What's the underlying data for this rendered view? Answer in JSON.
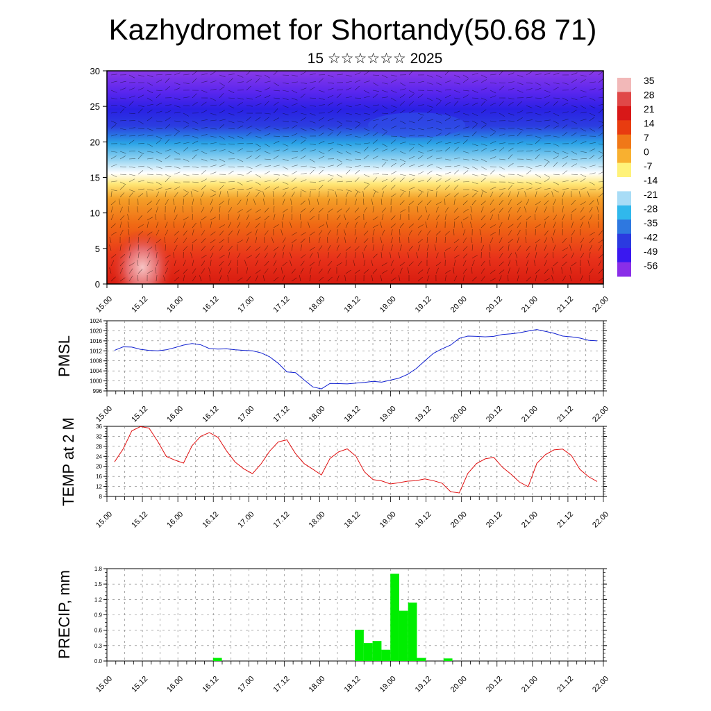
{
  "title": "Kazhydromet for Shortandy(50.68 71)",
  "subtitle": "15 ☆☆☆☆☆☆ 2025",
  "time_labels": [
    "15.00",
    "15.12",
    "16.00",
    "16.12",
    "17.00",
    "17.12",
    "18.00",
    "18.12",
    "19.00",
    "19.12",
    "20.00",
    "20.12",
    "21.00",
    "21.12",
    "22.00"
  ],
  "colorbar": {
    "labels": [
      "35",
      "28",
      "21",
      "14",
      "7",
      "0",
      "-7",
      "-14",
      "-21",
      "-28",
      "-35",
      "-42",
      "-49",
      "-56"
    ],
    "colors": [
      "#f2b8b8",
      "#e04848",
      "#d81818",
      "#e83c10",
      "#f07818",
      "#f8b030",
      "#fff27a",
      "#ffffff",
      "#a8dcf6",
      "#30b8ec",
      "#2e78e0",
      "#2b3ae0",
      "#3a18f0",
      "#8a2ee8"
    ]
  },
  "chart_data": [
    {
      "type": "heatmap",
      "description_text": "",
      "x_labels": [
        "15.00",
        "15.12",
        "16.00",
        "16.12",
        "17.00",
        "17.12",
        "18.00",
        "18.12",
        "19.00",
        "19.12",
        "20.00",
        "20.12",
        "21.00",
        "21.12",
        "22.00"
      ],
      "ylim": [
        0,
        30
      ],
      "y_ticks": [
        0,
        5,
        10,
        15,
        20,
        25,
        30
      ],
      "value_range": [
        -56,
        35
      ]
    },
    {
      "type": "line",
      "ylabel": "PMSL",
      "ylim": [
        996,
        1024
      ],
      "y_ticks": [
        996,
        1000,
        1004,
        1008,
        1012,
        1016,
        1020,
        1024
      ],
      "color": "#1020d0",
      "x": [
        "15.00",
        "15.03",
        "15.06",
        "15.09",
        "15.12",
        "15.15",
        "15.18",
        "15.21",
        "16.00",
        "16.03",
        "16.06",
        "16.09",
        "16.12",
        "16.15",
        "16.18",
        "16.21",
        "17.00",
        "17.03",
        "17.06",
        "17.09",
        "17.12",
        "17.15",
        "17.18",
        "17.21",
        "18.00",
        "18.03",
        "18.06",
        "18.09",
        "18.12",
        "18.15",
        "18.18",
        "18.21",
        "19.00",
        "19.03",
        "19.06",
        "19.09",
        "19.12",
        "19.15",
        "19.18",
        "19.21",
        "20.00",
        "20.03",
        "20.06",
        "20.09",
        "20.12",
        "20.15",
        "20.18",
        "20.21",
        "21.00",
        "21.03",
        "21.06",
        "21.09",
        "21.12",
        "21.15",
        "21.18",
        "21.21",
        "22.00"
      ],
      "values": [
        1012.2,
        1013.6,
        1013.5,
        1012.6,
        1012.2,
        1012.0,
        1012.4,
        1013.3,
        1014.3,
        1014.9,
        1014.4,
        1012.9,
        1012.7,
        1012.8,
        1012.4,
        1012.2,
        1012.0,
        1011.2,
        1009.6,
        1007.0,
        1003.6,
        1003.3,
        1000.4,
        997.6,
        996.8,
        999.0,
        998.9,
        998.8,
        999.1,
        999.4,
        999.8,
        999.5,
        1000.3,
        1001.1,
        1002.6,
        1004.9,
        1008.0,
        1011.0,
        1012.8,
        1014.3,
        1017.0,
        1017.9,
        1017.8,
        1017.6,
        1017.8,
        1018.5,
        1018.8,
        1019.2,
        1019.9,
        1020.5,
        1019.8,
        1019.0,
        1017.9,
        1017.6,
        1017.1,
        1016.2,
        1016.0
      ]
    },
    {
      "type": "line",
      "ylabel": "TEMP at 2 M",
      "ylim": [
        8,
        36
      ],
      "y_ticks": [
        8,
        12,
        16,
        20,
        24,
        28,
        32,
        36
      ],
      "color": "#e01010",
      "x": [
        "15.00",
        "15.03",
        "15.06",
        "15.09",
        "15.12",
        "15.15",
        "15.18",
        "15.21",
        "16.00",
        "16.03",
        "16.06",
        "16.09",
        "16.12",
        "16.15",
        "16.18",
        "16.21",
        "17.00",
        "17.03",
        "17.06",
        "17.09",
        "17.12",
        "17.15",
        "17.18",
        "17.21",
        "18.00",
        "18.03",
        "18.06",
        "18.09",
        "18.12",
        "18.15",
        "18.18",
        "18.21",
        "19.00",
        "19.03",
        "19.06",
        "19.09",
        "19.12",
        "19.15",
        "19.18",
        "19.21",
        "20.00",
        "20.03",
        "20.06",
        "20.09",
        "20.12",
        "20.15",
        "20.18",
        "20.21",
        "21.00",
        "21.03",
        "21.06",
        "21.09",
        "21.12",
        "21.15",
        "21.18",
        "21.21",
        "22.00"
      ],
      "values": [
        21.8,
        27.0,
        34.2,
        35.9,
        35.3,
        30.0,
        24.0,
        22.5,
        21.3,
        28.3,
        32.0,
        33.5,
        31.6,
        26.2,
        21.7,
        19.0,
        17.1,
        21.0,
        26.1,
        29.8,
        30.6,
        25.1,
        21.1,
        18.9,
        16.6,
        23.2,
        25.8,
        27.0,
        24.1,
        17.8,
        14.7,
        14.2,
        13.0,
        13.5,
        14.1,
        14.3,
        15.0,
        14.3,
        13.3,
        9.9,
        9.4,
        17.2,
        21.1,
        23.0,
        23.6,
        19.7,
        16.9,
        13.7,
        11.9,
        21.2,
        24.7,
        26.6,
        26.9,
        24.4,
        18.8,
        15.9,
        14.0
      ]
    },
    {
      "type": "bar",
      "ylabel": "PRECIP, mm",
      "ylim": [
        0,
        1.8
      ],
      "y_ticks": [
        "0.0",
        "0.3",
        "0.6",
        "0.9",
        "1.2",
        "1.5",
        "1.8"
      ],
      "color": "#00ee00",
      "categories": [
        "16.12",
        "18.12",
        "18.15",
        "18.18",
        "18.21",
        "19.00",
        "19.03",
        "19.06",
        "19.09",
        "19.12",
        "19.18"
      ],
      "values": [
        0.06,
        0.61,
        0.35,
        0.39,
        0.22,
        1.7,
        0.98,
        1.14,
        0.06,
        0.0,
        0.05
      ]
    }
  ]
}
